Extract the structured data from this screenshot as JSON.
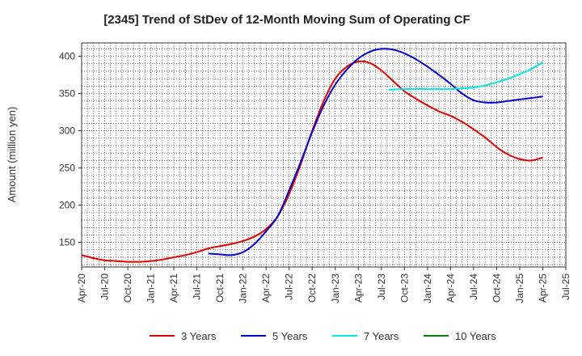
{
  "chart_data": {
    "type": "line",
    "title": "[2345]  Trend of StDev of 12-Month Moving Sum of Operating CF",
    "xlabel": "",
    "ylabel": "Amount (million yen)",
    "ylim": [
      117,
      418
    ],
    "yticks": [
      150,
      200,
      250,
      300,
      350,
      400
    ],
    "grid": true,
    "legend_position": "bottom",
    "x_ticks": [
      "Apr-20",
      "Jul-20",
      "Oct-20",
      "Jan-21",
      "Apr-21",
      "Jul-21",
      "Oct-21",
      "Jan-22",
      "Apr-22",
      "Jul-22",
      "Oct-22",
      "Jan-23",
      "Apr-23",
      "Jul-23",
      "Oct-23",
      "Jan-24",
      "Apr-24",
      "Jul-24",
      "Oct-24",
      "Jan-25",
      "Apr-25",
      "Jul-25"
    ],
    "series": [
      {
        "name": "3 Years",
        "color": "#e00000",
        "points": [
          [
            0,
            133
          ],
          [
            0.5,
            129
          ],
          [
            1,
            126
          ],
          [
            1.5,
            125
          ],
          [
            2,
            124
          ],
          [
            2.5,
            124
          ],
          [
            3,
            125
          ],
          [
            3.5,
            127
          ],
          [
            4,
            130
          ],
          [
            4.5,
            133
          ],
          [
            5,
            137
          ],
          [
            5.5,
            142
          ],
          [
            6,
            145
          ],
          [
            6.5,
            148
          ],
          [
            7,
            152
          ],
          [
            7.5,
            158
          ],
          [
            8,
            168
          ],
          [
            8.5,
            185
          ],
          [
            9,
            215
          ],
          [
            9.5,
            255
          ],
          [
            10,
            300
          ],
          [
            10.5,
            340
          ],
          [
            11,
            370
          ],
          [
            11.5,
            386
          ],
          [
            12,
            393
          ],
          [
            12.5,
            391
          ],
          [
            13,
            381
          ],
          [
            13.5,
            367
          ],
          [
            14,
            353
          ],
          [
            14.5,
            343
          ],
          [
            15,
            334
          ],
          [
            15.5,
            326
          ],
          [
            16,
            320
          ],
          [
            16.5,
            312
          ],
          [
            17,
            302
          ],
          [
            17.5,
            291
          ],
          [
            18,
            278
          ],
          [
            18.5,
            268
          ],
          [
            19,
            262
          ],
          [
            19.5,
            260
          ],
          [
            20,
            264
          ]
        ]
      },
      {
        "name": "5 Years",
        "color": "#0000cc",
        "points": [
          [
            5.5,
            135
          ],
          [
            6,
            134
          ],
          [
            6.5,
            133
          ],
          [
            7,
            137
          ],
          [
            7.5,
            148
          ],
          [
            8,
            165
          ],
          [
            8.5,
            185
          ],
          [
            9,
            220
          ],
          [
            9.5,
            258
          ],
          [
            10,
            298
          ],
          [
            10.5,
            334
          ],
          [
            11,
            362
          ],
          [
            11.5,
            382
          ],
          [
            12,
            397
          ],
          [
            12.5,
            406
          ],
          [
            13,
            410
          ],
          [
            13.5,
            409
          ],
          [
            14,
            404
          ],
          [
            14.5,
            396
          ],
          [
            15,
            386
          ],
          [
            15.5,
            375
          ],
          [
            16,
            363
          ],
          [
            16.5,
            350
          ],
          [
            17,
            341
          ],
          [
            17.5,
            338
          ],
          [
            18,
            338
          ],
          [
            18.5,
            340
          ],
          [
            19,
            342
          ],
          [
            19.5,
            344
          ],
          [
            20,
            346
          ]
        ]
      },
      {
        "name": "7 Years",
        "color": "#00e5e5",
        "points": [
          [
            13.3,
            355
          ],
          [
            14,
            356
          ],
          [
            15,
            356
          ],
          [
            16,
            356
          ],
          [
            16.5,
            357
          ],
          [
            17,
            358
          ],
          [
            17.5,
            361
          ],
          [
            18,
            365
          ],
          [
            18.5,
            370
          ],
          [
            19,
            376
          ],
          [
            19.5,
            383
          ],
          [
            20,
            392
          ]
        ]
      },
      {
        "name": "10 Years",
        "color": "#008000",
        "points": []
      }
    ]
  }
}
